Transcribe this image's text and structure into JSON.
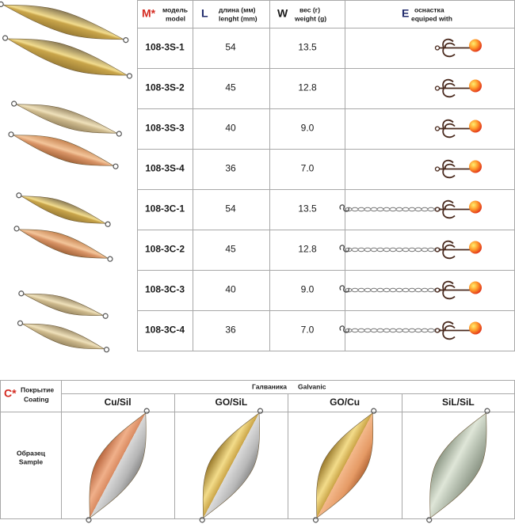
{
  "table": {
    "header": {
      "model": {
        "letter": "M*",
        "label_ru": "модель",
        "label_en": "model"
      },
      "length": {
        "letter": "L",
        "label_ru": "длина (мм)",
        "label_en": "lenght (mm)"
      },
      "weight": {
        "letter": "W",
        "label_ru": "вес (г)",
        "label_en": "weight (g)"
      },
      "equipment": {
        "letter": "E",
        "label_ru": "оснастка",
        "label_en": "equiped with"
      }
    },
    "rows": [
      [
        "108-3S-1",
        "54",
        "13.5"
      ],
      [
        "108-3S-2",
        "45",
        "12.8"
      ],
      [
        "108-3S-3",
        "40",
        "9.0"
      ],
      [
        "108-3S-4",
        "36",
        "7.0"
      ],
      [
        "108-3C-1",
        "54",
        "13.5"
      ],
      [
        "108-3C-2",
        "45",
        "12.8"
      ],
      [
        "108-3C-3",
        "40",
        "9.0"
      ],
      [
        "108-3C-4",
        "36",
        "7.0"
      ]
    ]
  },
  "coating_table": {
    "header": {
      "letter": "C*",
      "label_ru": "Покрытие",
      "label_en": "Coating"
    },
    "group": {
      "label_ru": "Галваника",
      "label_en": "Galvanic"
    },
    "coatings": [
      "Cu/Sil",
      "GO/SiL",
      "GO/Cu",
      "SiL/SiL"
    ],
    "row_label": {
      "label_ru": "Образец",
      "label_en": "Sample"
    }
  }
}
